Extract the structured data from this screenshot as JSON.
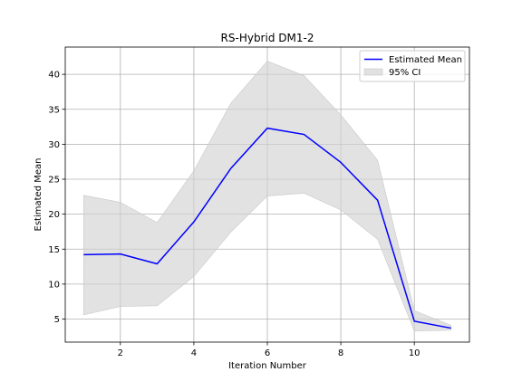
{
  "chart_data": {
    "type": "line",
    "title": "RS-Hybrid DM1-2",
    "xlabel": "Iteration Number",
    "ylabel": "Estimated Mean",
    "x": [
      1,
      2,
      3,
      4,
      5,
      6,
      7,
      8,
      9,
      10,
      11
    ],
    "series": [
      {
        "name": "Estimated Mean",
        "values": [
          14.2,
          14.3,
          12.9,
          18.9,
          26.5,
          32.3,
          31.4,
          27.4,
          22.0,
          4.7,
          3.7
        ],
        "color": "#0000ff"
      }
    ],
    "band": {
      "name": "95% CI",
      "lower": [
        5.6,
        6.8,
        6.9,
        11.1,
        17.4,
        22.6,
        23.0,
        20.6,
        16.4,
        3.3,
        3.4
      ],
      "upper": [
        22.7,
        21.7,
        18.8,
        26.2,
        35.8,
        41.9,
        39.8,
        34.2,
        27.7,
        6.2,
        4.1
      ],
      "color": "#d3d3d3"
    },
    "xlim": [
      0.5,
      11.5
    ],
    "ylim": [
      1.7,
      43.9
    ],
    "xticks": [
      2,
      4,
      6,
      8,
      10
    ],
    "yticks": [
      5,
      10,
      15,
      20,
      25,
      30,
      35,
      40
    ],
    "grid": true,
    "legend_position": "upper right"
  }
}
